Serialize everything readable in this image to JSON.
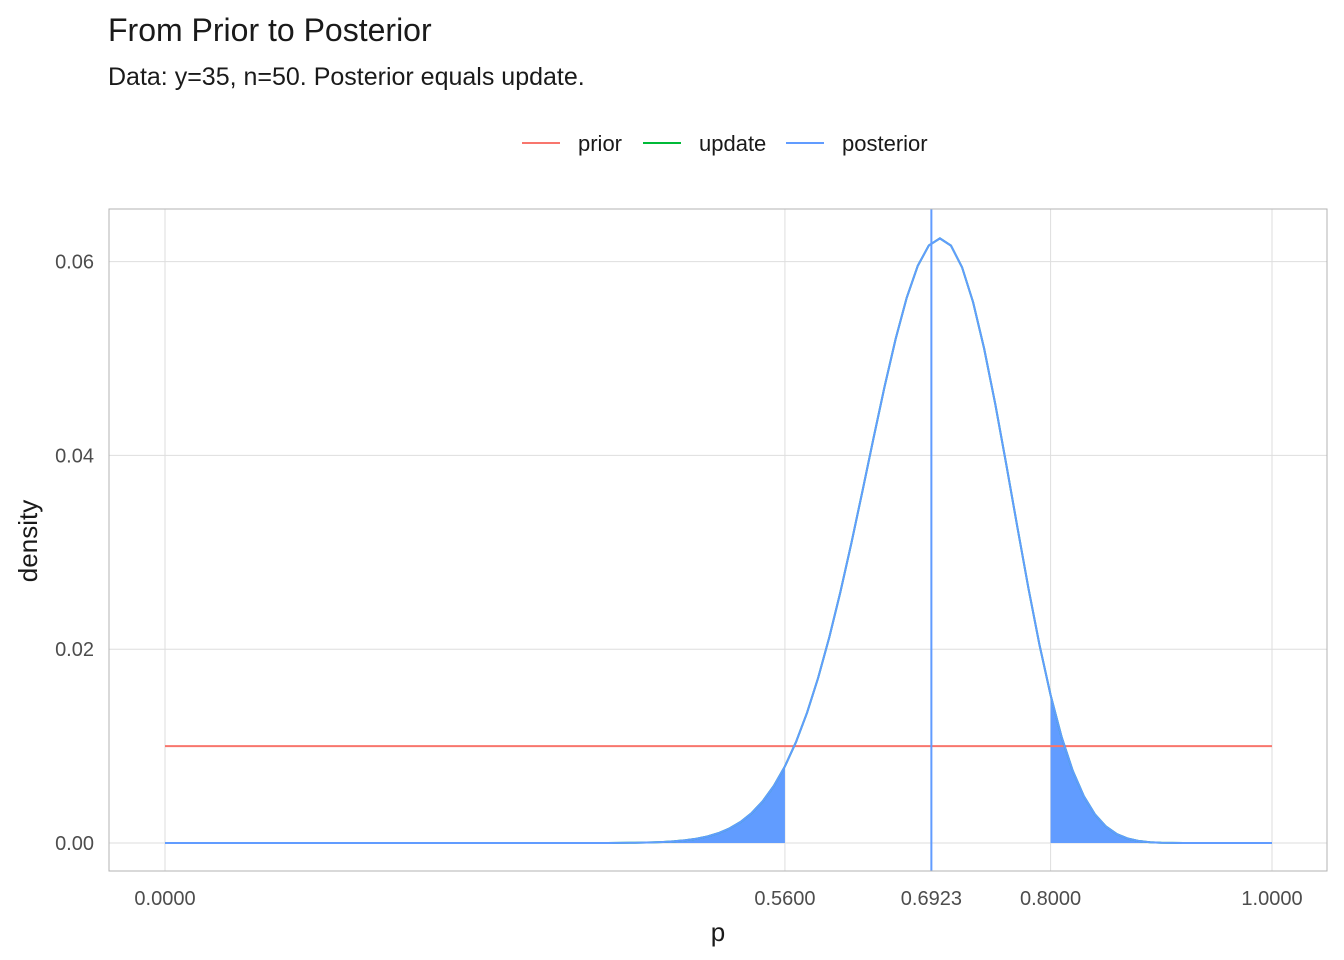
{
  "chart_data": {
    "type": "line",
    "title": "From Prior to Posterior",
    "subtitle": "Data: y=35, n=50. Posterior equals update.",
    "xlabel": "p",
    "ylabel": "density",
    "xlim": [
      0,
      1
    ],
    "ylim": [
      0,
      0.065
    ],
    "x_ticks": [
      0,
      0.56,
      0.6923,
      0.8,
      1
    ],
    "x_tick_labels": [
      "0.0000",
      "0.5600",
      "0.6923",
      "0.8000",
      "1.0000"
    ],
    "y_ticks": [
      0,
      0.02,
      0.04,
      0.06
    ],
    "y_tick_labels": [
      "0.00",
      "0.02",
      "0.04",
      "0.06"
    ],
    "grid": true,
    "legend_position": "top",
    "legend": [
      {
        "name": "prior",
        "color": "#F8766D"
      },
      {
        "name": "update",
        "color": "#00BA38"
      },
      {
        "name": "posterior",
        "color": "#619CFF"
      }
    ],
    "series": [
      {
        "name": "prior",
        "color": "#F8766D",
        "x": [
          0,
          1
        ],
        "y": [
          0.01,
          0.01
        ]
      },
      {
        "name": "update",
        "color": "#00BA38",
        "distribution": "beta",
        "alpha": 36,
        "beta": 16,
        "grid_step": 0.01
      },
      {
        "name": "posterior",
        "color": "#619CFF",
        "distribution": "beta",
        "alpha": 36,
        "beta": 16,
        "grid_step": 0.01
      }
    ],
    "vline": {
      "x": 0.6923,
      "color": "#619CFF"
    },
    "shaded_tails": {
      "lower_below": 0.56,
      "upper_above": 0.8,
      "color": "#619CFF"
    }
  }
}
